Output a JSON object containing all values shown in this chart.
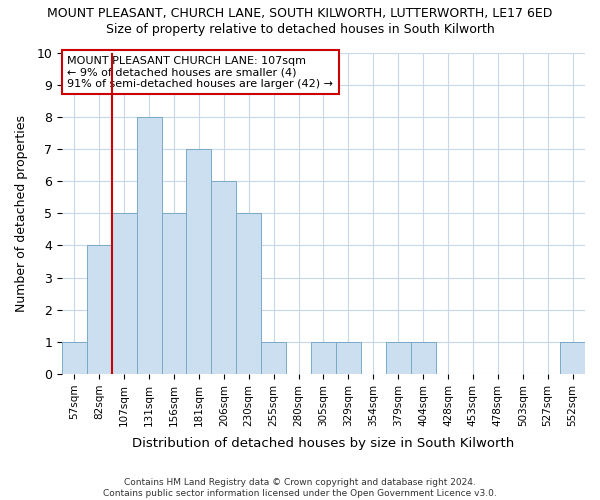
{
  "title": "MOUNT PLEASANT, CHURCH LANE, SOUTH KILWORTH, LUTTERWORTH, LE17 6ED",
  "subtitle": "Size of property relative to detached houses in South Kilworth",
  "xlabel": "Distribution of detached houses by size in South Kilworth",
  "ylabel": "Number of detached properties",
  "bin_labels": [
    "57sqm",
    "82sqm",
    "107sqm",
    "131sqm",
    "156sqm",
    "181sqm",
    "206sqm",
    "230sqm",
    "255sqm",
    "280sqm",
    "305sqm",
    "329sqm",
    "354sqm",
    "379sqm",
    "404sqm",
    "428sqm",
    "453sqm",
    "478sqm",
    "503sqm",
    "527sqm",
    "552sqm"
  ],
  "bar_heights": [
    1,
    4,
    5,
    8,
    5,
    7,
    6,
    5,
    1,
    0,
    1,
    1,
    0,
    1,
    1,
    0,
    0,
    0,
    0,
    0,
    1
  ],
  "bar_color": "#ccdff0",
  "bar_edgecolor": "#7aaac8",
  "ylim": [
    0,
    10
  ],
  "yticks": [
    0,
    1,
    2,
    3,
    4,
    5,
    6,
    7,
    8,
    9,
    10
  ],
  "redline_index": 2,
  "annotation_lines": [
    "MOUNT PLEASANT CHURCH LANE: 107sqm",
    "← 9% of detached houses are smaller (4)",
    "91% of semi-detached houses are larger (42) →"
  ],
  "annotation_box_facecolor": "#ffffff",
  "annotation_box_edgecolor": "#cc0000",
  "redline_color": "#cc0000",
  "grid_color": "#c8d8e8",
  "footer_line1": "Contains HM Land Registry data © Crown copyright and database right 2024.",
  "footer_line2": "Contains public sector information licensed under the Open Government Licence v3.0.",
  "background_color": "#ffffff",
  "plot_background_color": "#ffffff"
}
